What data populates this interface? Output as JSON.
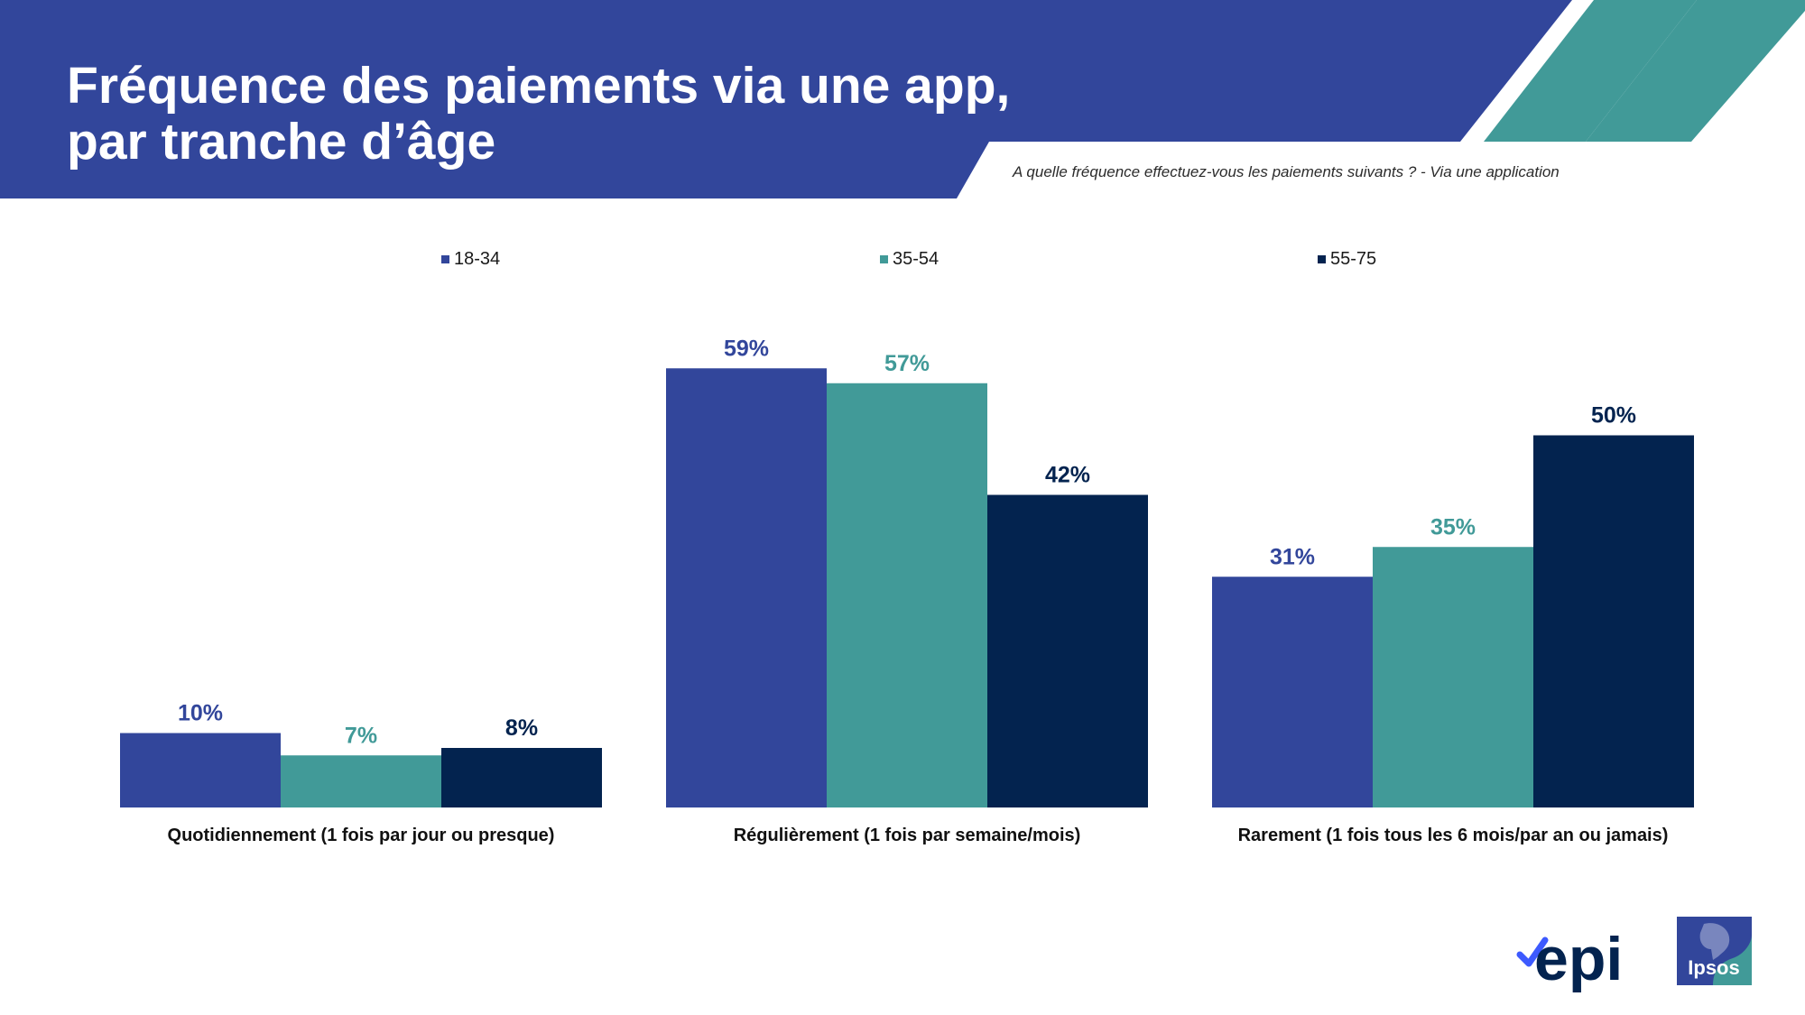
{
  "header": {
    "title_line1": "Fréquence des paiements via une app,",
    "title_line2": "par tranche d’âge",
    "subtitle": "A quelle fréquence effectuez-vous les paiements suivants ? - Via une application"
  },
  "colors": {
    "banner": "#32469B",
    "series_18_34": "#32469B",
    "series_35_54": "#419A98",
    "series_55_75": "#03234F",
    "stripe": "#419A98"
  },
  "chart_data": {
    "type": "bar",
    "categories": [
      "Quotidiennement (1 fois par jour ou presque)",
      "Régulièrement (1 fois par semaine/mois)",
      "Rarement (1 fois tous les 6 mois/par an ou jamais)"
    ],
    "series": [
      {
        "name": "18-34",
        "values": [
          10,
          59,
          31
        ],
        "labels": [
          "10%",
          "59%",
          "31%"
        ]
      },
      {
        "name": "35-54",
        "values": [
          7,
          57,
          35
        ],
        "labels": [
          "7%",
          "57%",
          "35%"
        ]
      },
      {
        "name": "55-75",
        "values": [
          8,
          42,
          50
        ],
        "labels": [
          "8%",
          "42%",
          "50%"
        ]
      }
    ],
    "unit": "%",
    "ylim": [
      0,
      100
    ],
    "grid": false,
    "legend_position": "top"
  },
  "logos": {
    "epi": {
      "name": "epi-logo",
      "text": "epi"
    },
    "ipsos": {
      "name": "ipsos-logo",
      "text": "Ipsos"
    }
  }
}
